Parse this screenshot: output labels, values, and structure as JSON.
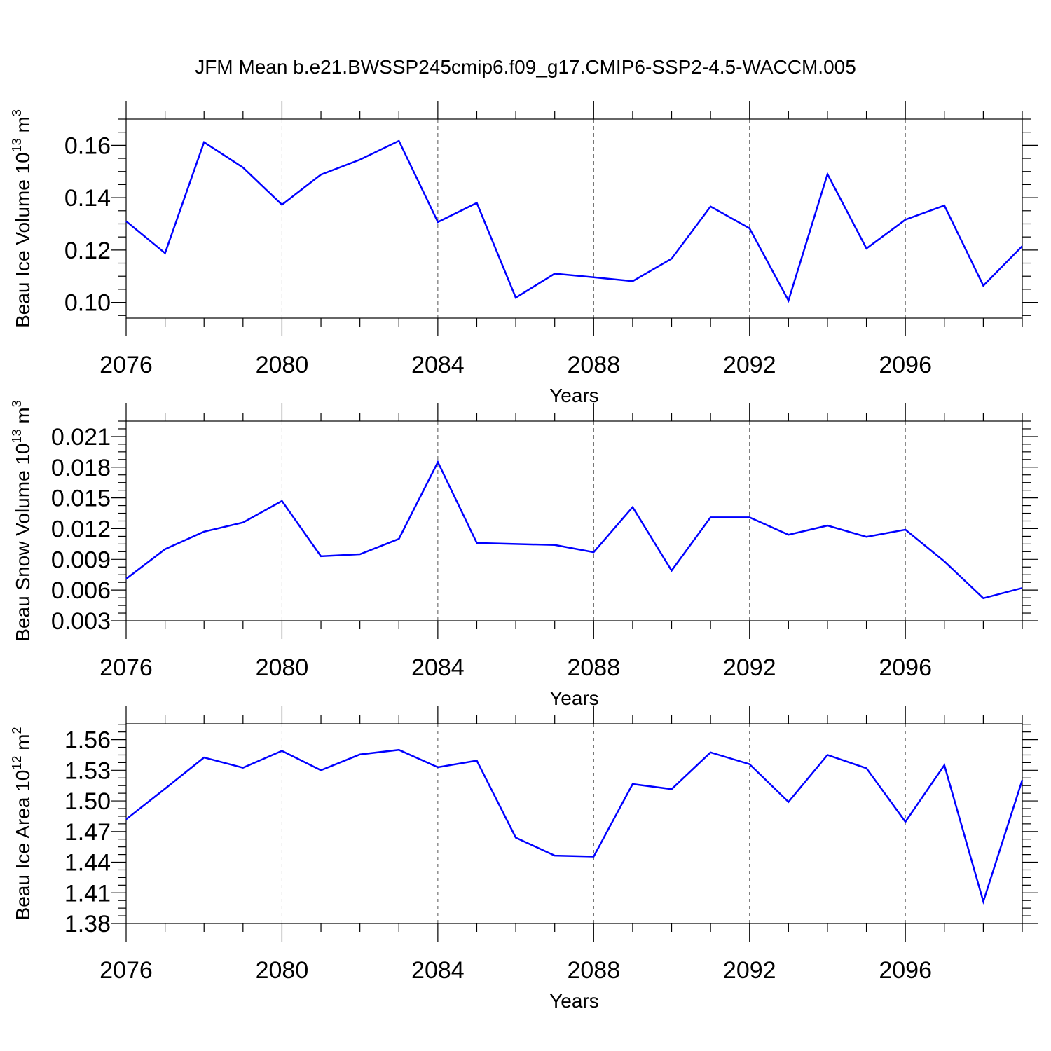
{
  "figure_title": "JFM Mean b.e21.BWSSP245cmip6.f09_g17.CMIP6-SSP2-4.5-WACCM.005",
  "colors": {
    "line": "#0000ff",
    "axis": "#000000",
    "grid": "#555555"
  },
  "chart_data": [
    {
      "type": "line",
      "title": "",
      "xlabel": "Years",
      "ylabel_main": "Beau Ice Volume 10",
      "ylabel_exp": "13",
      "ylabel_unit": " m",
      "ylabel_unit_exp": "3",
      "xlim": [
        2076,
        2099
      ],
      "ylim": [
        0.094,
        0.17
      ],
      "xticks": [
        2076,
        2080,
        2084,
        2088,
        2092,
        2096
      ],
      "xtick_labels": [
        "2076",
        "2080",
        "2084",
        "2088",
        "2092",
        "2096"
      ],
      "yticks": [
        0.1,
        0.12,
        0.14,
        0.16
      ],
      "ytick_labels": [
        "0.10",
        "0.12",
        "0.14",
        "0.16"
      ],
      "grid": "vertical-dashed",
      "x": [
        2076,
        2077,
        2078,
        2079,
        2080,
        2081,
        2082,
        2083,
        2084,
        2085,
        2086,
        2087,
        2088,
        2089,
        2090,
        2091,
        2092,
        2093,
        2094,
        2095,
        2096,
        2097,
        2098,
        2099
      ],
      "values": [
        0.131,
        0.1188,
        0.1612,
        0.1515,
        0.1373,
        0.1488,
        0.1545,
        0.1617,
        0.1307,
        0.138,
        0.1018,
        0.111,
        0.1096,
        0.1081,
        0.1167,
        0.1366,
        0.1283,
        0.1007,
        0.149,
        0.1206,
        0.1316,
        0.137,
        0.1064,
        0.1215
      ]
    },
    {
      "type": "line",
      "title": "",
      "xlabel": "Years",
      "ylabel_main": "Beau Snow Volume 10",
      "ylabel_exp": "13",
      "ylabel_unit": " m",
      "ylabel_unit_exp": "3",
      "xlim": [
        2076,
        2099
      ],
      "ylim": [
        0.003,
        0.0225
      ],
      "xticks": [
        2076,
        2080,
        2084,
        2088,
        2092,
        2096
      ],
      "xtick_labels": [
        "2076",
        "2080",
        "2084",
        "2088",
        "2092",
        "2096"
      ],
      "yticks": [
        0.003,
        0.006,
        0.009,
        0.012,
        0.015,
        0.018,
        0.021
      ],
      "ytick_labels": [
        "0.003",
        "0.006",
        "0.009",
        "0.012",
        "0.015",
        "0.018",
        "0.021"
      ],
      "grid": "vertical-dashed",
      "x": [
        2076,
        2077,
        2078,
        2079,
        2080,
        2081,
        2082,
        2083,
        2084,
        2085,
        2086,
        2087,
        2088,
        2089,
        2090,
        2091,
        2092,
        2093,
        2094,
        2095,
        2096,
        2097,
        2098,
        2099
      ],
      "values": [
        0.0071,
        0.01,
        0.0117,
        0.0126,
        0.0147,
        0.0093,
        0.0095,
        0.011,
        0.0185,
        0.0106,
        0.0105,
        0.0104,
        0.0097,
        0.0141,
        0.0079,
        0.0131,
        0.0131,
        0.0114,
        0.0123,
        0.0112,
        0.0119,
        0.0088,
        0.0052,
        0.0062
      ]
    },
    {
      "type": "line",
      "title": "",
      "xlabel": "Years",
      "ylabel_main": "Beau Ice Area 10",
      "ylabel_exp": "12",
      "ylabel_unit": " m",
      "ylabel_unit_exp": "2",
      "xlim": [
        2076,
        2099
      ],
      "ylim": [
        1.38,
        1.5755
      ],
      "xticks": [
        2076,
        2080,
        2084,
        2088,
        2092,
        2096
      ],
      "xtick_labels": [
        "2076",
        "2080",
        "2084",
        "2088",
        "2092",
        "2096"
      ],
      "yticks": [
        1.38,
        1.41,
        1.44,
        1.47,
        1.5,
        1.53,
        1.56
      ],
      "ytick_labels": [
        "1.38",
        "1.41",
        "1.44",
        "1.47",
        "1.50",
        "1.53",
        "1.56"
      ],
      "grid": "vertical-dashed",
      "x": [
        2076,
        2077,
        2078,
        2079,
        2080,
        2081,
        2082,
        2083,
        2084,
        2085,
        2086,
        2087,
        2088,
        2089,
        2090,
        2091,
        2092,
        2093,
        2094,
        2095,
        2096,
        2097,
        2098,
        2099
      ],
      "values": [
        1.482,
        1.512,
        1.5425,
        1.5325,
        1.549,
        1.53,
        1.5455,
        1.55,
        1.533,
        1.5395,
        1.464,
        1.4465,
        1.4455,
        1.5165,
        1.5115,
        1.5475,
        1.536,
        1.499,
        1.545,
        1.532,
        1.4795,
        1.535,
        1.4015,
        1.5205
      ]
    }
  ]
}
